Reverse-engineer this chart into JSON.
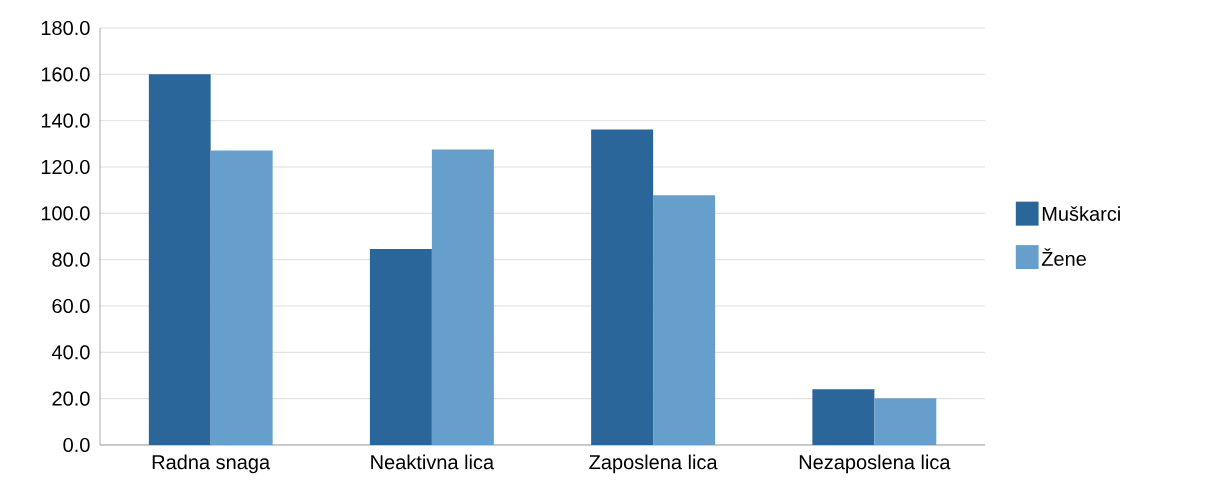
{
  "chart_data": {
    "type": "bar",
    "categories": [
      "Radna snaga",
      "Neaktivna lica",
      "Zaposlena lica",
      "Nezaposlena lica"
    ],
    "series": [
      {
        "name": "Muškarci",
        "color": "#2a6699",
        "values": [
          160,
          84.6,
          136.2,
          24.1
        ]
      },
      {
        "name": "Žene",
        "color": "#669fcc",
        "values": [
          127.1,
          127.6,
          107.8,
          20.2
        ]
      }
    ],
    "ylim": [
      0,
      180
    ],
    "yticks": [
      {
        "value": 0,
        "label": "0.0"
      },
      {
        "value": 20,
        "label": "20.0"
      },
      {
        "value": 40,
        "label": "40.0"
      },
      {
        "value": 60,
        "label": "60.0"
      },
      {
        "value": 80,
        "label": "80.0"
      },
      {
        "value": 100,
        "label": "100.0"
      },
      {
        "value": 120,
        "label": "120.0"
      },
      {
        "value": 140,
        "label": "140.0"
      },
      {
        "value": 160,
        "label": "160.0"
      },
      {
        "value": 180,
        "label": "180.0"
      }
    ],
    "grid": "y",
    "legend": "right"
  }
}
